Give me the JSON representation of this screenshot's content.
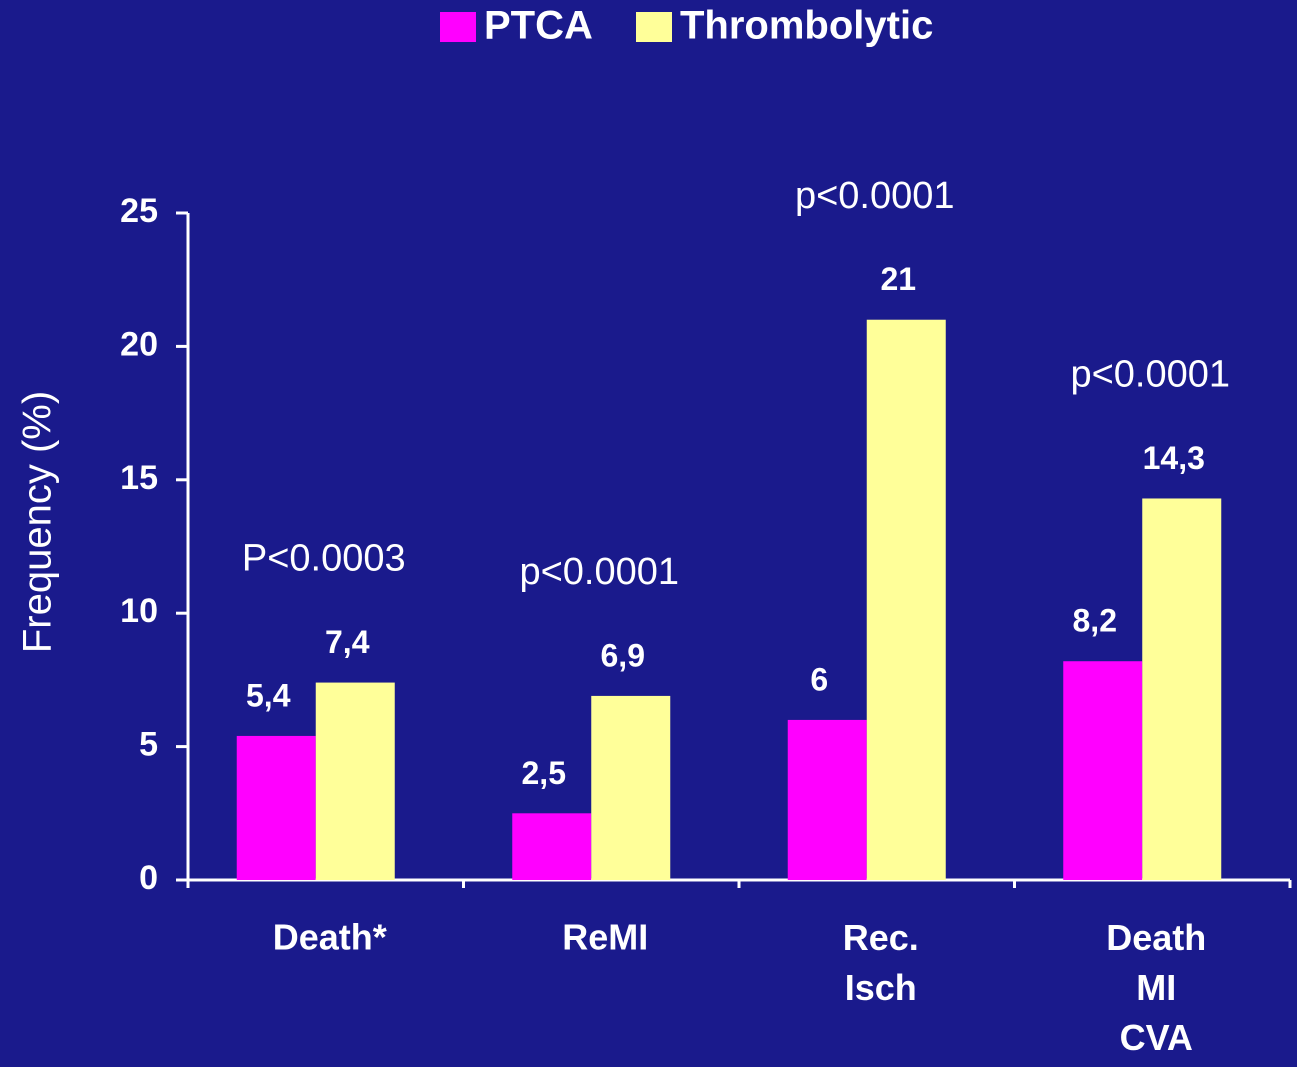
{
  "chart_data": {
    "type": "bar",
    "y_label": "Frequency (%)",
    "categories": [
      "Death*",
      "ReMI",
      "Rec.\nIsch",
      "Death\nMI\nCVA"
    ],
    "annotations": [
      "P<0.0003",
      "p<0.0001",
      "p<0.0001",
      "p<0.0001"
    ],
    "series": [
      {
        "name": "PTCA",
        "color": "#ff00ff",
        "values": [
          5.4,
          2.5,
          6,
          8.2
        ],
        "value_labels": [
          "5,4",
          "2,5",
          "6",
          "8,2"
        ]
      },
      {
        "name": "Thrombolytic",
        "color": "#ffff99",
        "values": [
          7.4,
          6.9,
          21,
          14.3
        ],
        "value_labels": [
          "7,4",
          "6,9",
          "21",
          "14,3"
        ]
      }
    ],
    "ylim": [
      0,
      25
    ],
    "yticks": [
      0,
      5,
      10,
      15,
      20,
      25
    ],
    "legend": "top"
  }
}
